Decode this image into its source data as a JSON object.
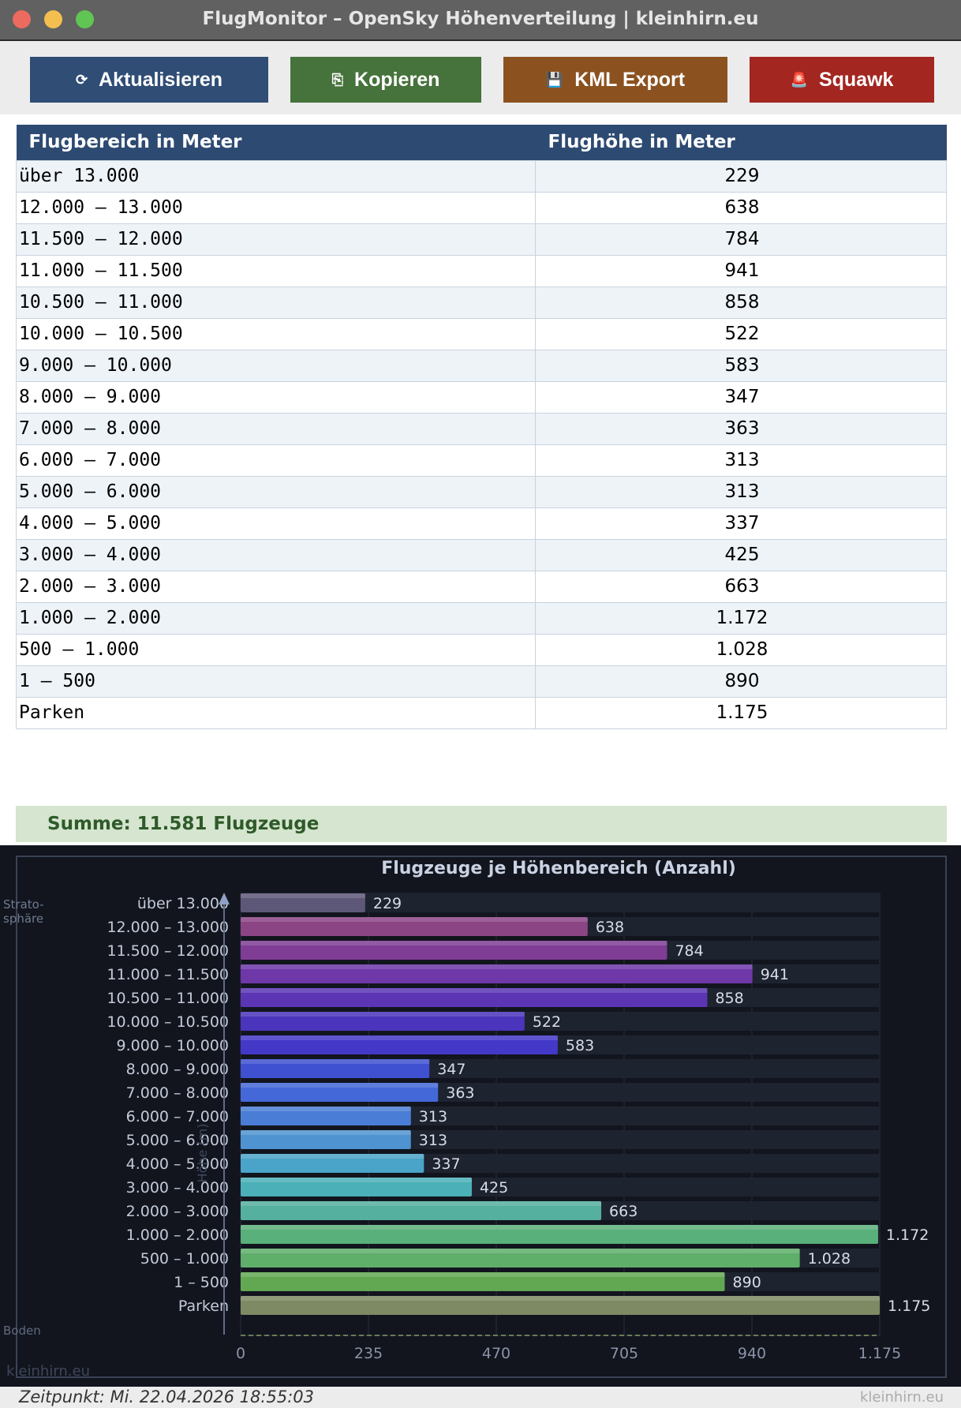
{
  "window": {
    "title": "FlugMonitor – OpenSky Höhenverteilung  |  kleinhirn.eu"
  },
  "toolbar": {
    "refresh_label": "Aktualisieren",
    "copy_label": "Kopieren",
    "kml_label": "KML Export",
    "squawk_label": "Squawk",
    "refresh_icon": "⟳",
    "copy_icon": "⎘",
    "kml_icon": "💾",
    "squawk_icon": "🚨"
  },
  "table": {
    "headers": [
      "Flugbereich in Meter",
      "Flughöhe in Meter"
    ],
    "rows": [
      [
        "über 13.000",
        "229"
      ],
      [
        "12.000 – 13.000",
        "638"
      ],
      [
        "11.500 – 12.000",
        "784"
      ],
      [
        "11.000 – 11.500",
        "941"
      ],
      [
        "10.500 – 11.000",
        "858"
      ],
      [
        "10.000 – 10.500",
        "522"
      ],
      [
        "9.000 – 10.000",
        "583"
      ],
      [
        "8.000 – 9.000",
        "347"
      ],
      [
        "7.000 – 8.000",
        "363"
      ],
      [
        "6.000 – 7.000",
        "313"
      ],
      [
        "5.000 – 6.000",
        "313"
      ],
      [
        "4.000 – 5.000",
        "337"
      ],
      [
        "3.000 – 4.000",
        "425"
      ],
      [
        "2.000 – 3.000",
        "663"
      ],
      [
        "1.000 – 2.000",
        "1.172"
      ],
      [
        "500 – 1.000",
        "1.028"
      ],
      [
        "1 – 500",
        "890"
      ],
      [
        "Parken",
        "1.175"
      ]
    ]
  },
  "summary": {
    "text": "Summe: 11.581 Flugzeuge"
  },
  "chart_data": {
    "type": "bar",
    "orientation": "horizontal",
    "title": "Flugzeuge je Höhenbereich  (Anzahl)",
    "ylabel": "Höhe (m)",
    "top_label": "Strato-\nsphäre",
    "bottom_label": "Boden",
    "watermark": "kleinhirn.eu",
    "categories": [
      "über 13.000",
      "12.000 – 13.000",
      "11.500 – 12.000",
      "11.000 – 11.500",
      "10.500 – 11.000",
      "10.000 – 10.500",
      "9.000 – 10.000",
      "8.000 – 9.000",
      "7.000 – 8.000",
      "6.000 – 7.000",
      "5.000 – 6.000",
      "4.000 – 5.000",
      "3.000 – 4.000",
      "2.000 – 3.000",
      "1.000 – 2.000",
      "500 – 1.000",
      "1 – 500",
      "Parken"
    ],
    "values": [
      229,
      638,
      784,
      941,
      858,
      522,
      583,
      347,
      363,
      313,
      313,
      337,
      425,
      663,
      1172,
      1028,
      890,
      1175
    ],
    "value_labels": [
      "229",
      "638",
      "784",
      "941",
      "858",
      "522",
      "583",
      "347",
      "363",
      "313",
      "313",
      "337",
      "425",
      "663",
      "1.172",
      "1.028",
      "890",
      "1.175"
    ],
    "colors": [
      "#5e5878",
      "#8b4585",
      "#7f3d95",
      "#6e38a8",
      "#5b35b3",
      "#4a35bc",
      "#4438c8",
      "#3f50d0",
      "#4468d8",
      "#4a7ed6",
      "#4f93d0",
      "#4aa3c8",
      "#4bb0b8",
      "#55b0a0",
      "#5ab07a",
      "#5fae6a",
      "#62a852",
      "#7d8a63"
    ],
    "xlim": [
      0,
      1175
    ],
    "xticks": [
      0,
      235,
      470,
      705,
      940,
      1175
    ],
    "xtick_labels": [
      "0",
      "235",
      "470",
      "705",
      "940",
      "1.175"
    ]
  },
  "footer": {
    "timestamp": "Zeitpunkt: Mi. 22.04.2026 18:55:03",
    "brand": "kleinhirn.eu"
  }
}
